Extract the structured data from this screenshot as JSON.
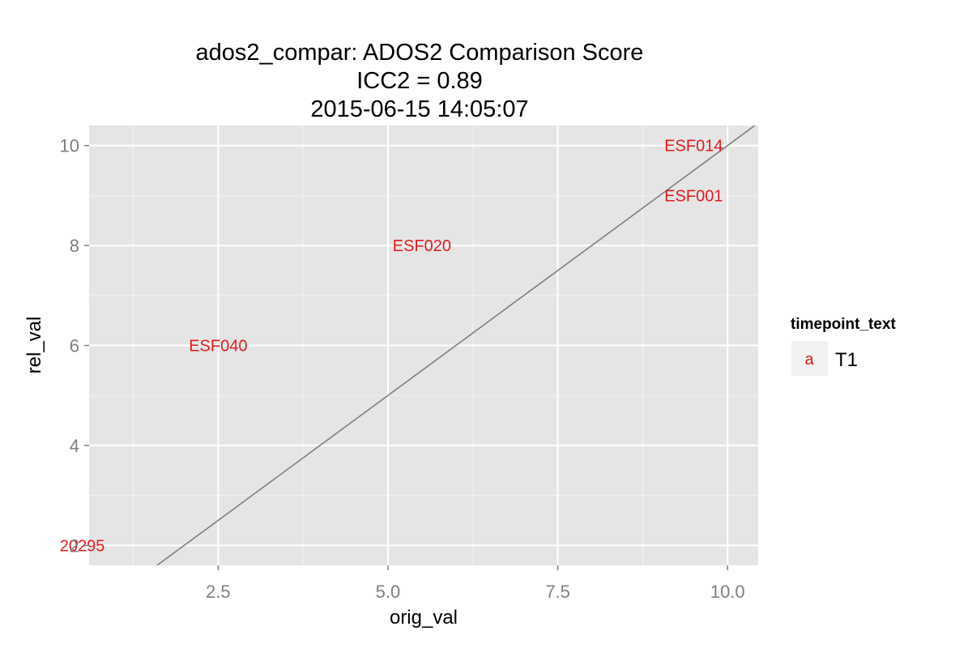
{
  "chart_data": {
    "type": "scatter",
    "title_lines": [
      "ados2_compar: ADOS2 Comparison Score",
      "ICC2 = 0.89",
      "2015-06-15 14:05:07"
    ],
    "xlabel": "orig_val",
    "ylabel": "rel_val",
    "xlim": [
      0.6,
      10.45
    ],
    "ylim": [
      1.6,
      10.4
    ],
    "x_ticks": [
      2.5,
      5.0,
      7.5,
      10.0
    ],
    "x_tick_labels": [
      "2.5",
      "5.0",
      "7.5",
      "10.0"
    ],
    "y_ticks": [
      2,
      4,
      6,
      8,
      10
    ],
    "y_tick_labels": [
      "2",
      "4",
      "6",
      "8",
      "10"
    ],
    "grid": true,
    "reference_line": {
      "slope": 1,
      "intercept": 0,
      "color": "#7f7f7f"
    },
    "points": [
      {
        "x": 0.5,
        "y": 2,
        "label": "20295"
      },
      {
        "x": 2.5,
        "y": 6,
        "label": "ESF040"
      },
      {
        "x": 5.5,
        "y": 8,
        "label": "ESF020"
      },
      {
        "x": 9.5,
        "y": 10,
        "label": "ESF014"
      },
      {
        "x": 9.5,
        "y": 9,
        "label": "ESF001"
      }
    ],
    "point_color": "#e41a1c",
    "legend": {
      "title": "timepoint_text",
      "position": "right",
      "items": [
        {
          "key_glyph": "a",
          "label": "T1",
          "color": "#e41a1c"
        }
      ]
    }
  }
}
